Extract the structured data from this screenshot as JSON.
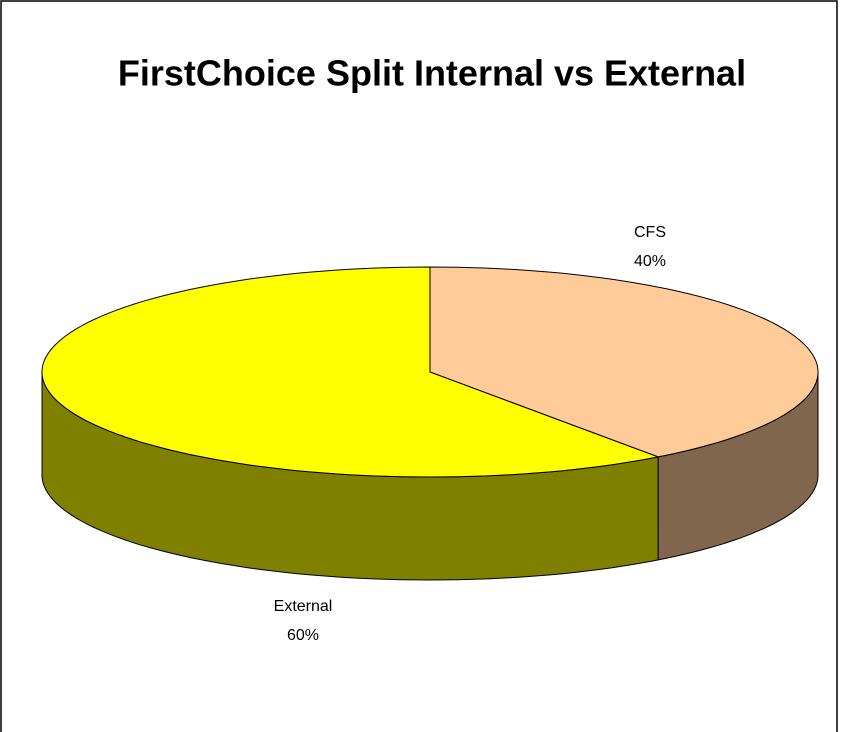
{
  "chart_data": {
    "type": "pie",
    "title": "FirstChoice Split Internal vs External",
    "categories": [
      "CFS",
      "External"
    ],
    "values": [
      40,
      60
    ],
    "value_labels": [
      "40%",
      "60%"
    ],
    "colors": [
      "#ffcc99",
      "#ffff00"
    ]
  }
}
